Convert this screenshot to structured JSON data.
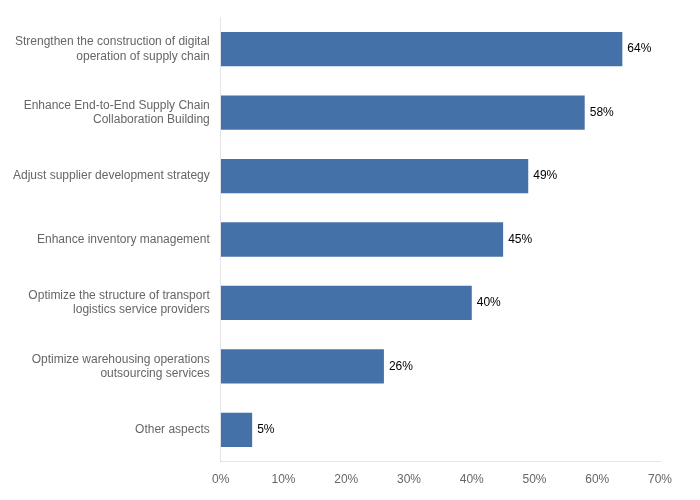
{
  "chart_data": {
    "type": "bar",
    "orientation": "horizontal",
    "categories": [
      "Other aspects",
      "Optimize warehousing operations\noutsourcing services",
      "Optimize the structure of transport\nlogistics service providers",
      "Enhance inventory management",
      "Adjust supplier development strategy",
      "Enhance End-to-End Supply Chain\nCollaboration Building",
      "Strengthen the construction of digital\noperation of supply chain"
    ],
    "values": [
      5,
      26,
      40,
      45,
      49,
      58,
      64
    ],
    "value_labels": [
      "5%",
      "26%",
      "40%",
      "45%",
      "49%",
      "58%",
      "64%"
    ],
    "data_labels": true,
    "color": "#4472a8",
    "xlim": [
      0,
      70
    ],
    "xticks": [
      {
        "value": 0,
        "label": "0%"
      },
      {
        "value": 10,
        "label": "10%"
      },
      {
        "value": 20,
        "label": "20%"
      },
      {
        "value": 30,
        "label": "30%"
      },
      {
        "value": 40,
        "label": "40%"
      },
      {
        "value": 50,
        "label": "50%"
      },
      {
        "value": 60,
        "label": "60%"
      },
      {
        "value": 70,
        "label": "70%"
      }
    ],
    "grid": false
  }
}
